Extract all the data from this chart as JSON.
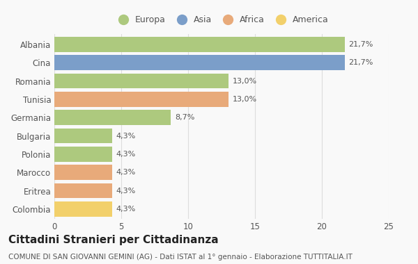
{
  "categories": [
    "Albania",
    "Cina",
    "Romania",
    "Tunisia",
    "Germania",
    "Bulgaria",
    "Polonia",
    "Marocco",
    "Eritrea",
    "Colombia"
  ],
  "values": [
    21.7,
    21.7,
    13.0,
    13.0,
    8.7,
    4.3,
    4.3,
    4.3,
    4.3,
    4.3
  ],
  "labels": [
    "21,7%",
    "21,7%",
    "13,0%",
    "13,0%",
    "8,7%",
    "4,3%",
    "4,3%",
    "4,3%",
    "4,3%",
    "4,3%"
  ],
  "continents": [
    "Europa",
    "Asia",
    "Europa",
    "Africa",
    "Europa",
    "Europa",
    "Europa",
    "Africa",
    "Africa",
    "America"
  ],
  "colors": {
    "Europa": "#adc97e",
    "Asia": "#7b9ec9",
    "Africa": "#e8aa7a",
    "America": "#f2d06b"
  },
  "legend_order": [
    "Europa",
    "Asia",
    "Africa",
    "America"
  ],
  "title": "Cittadini Stranieri per Cittadinanza",
  "subtitle": "COMUNE DI SAN GIOVANNI GEMINI (AG) - Dati ISTAT al 1° gennaio - Elaborazione TUTTITALIA.IT",
  "xlim": [
    0,
    25
  ],
  "xticks": [
    0,
    5,
    10,
    15,
    20,
    25
  ],
  "background_color": "#f9f9f9",
  "bar_height": 0.82,
  "title_fontsize": 11,
  "subtitle_fontsize": 7.5,
  "label_fontsize": 8,
  "tick_fontsize": 8.5,
  "legend_fontsize": 9
}
